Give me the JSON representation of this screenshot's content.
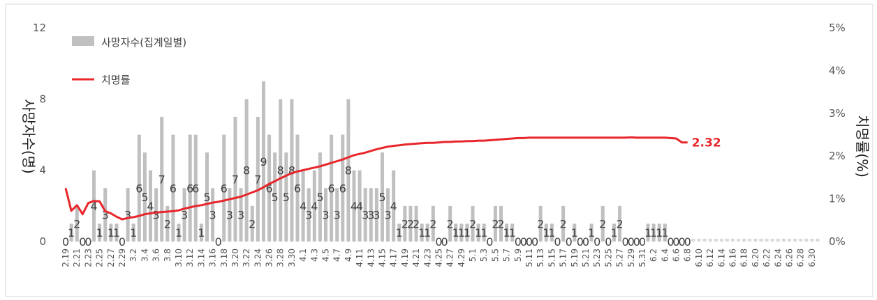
{
  "chart_data": {
    "type": "bar+line",
    "legend": {
      "placement": "top-left",
      "items": [
        "사망자수(집계일별)",
        "치명률"
      ]
    },
    "y_left": {
      "label": "사망자수(명)",
      "range": [
        0,
        12
      ],
      "ticks": [
        "0",
        "4",
        "8",
        "12"
      ]
    },
    "y_right": {
      "label": "치명률(%)",
      "range": [
        0,
        5
      ],
      "ticks": [
        "0%",
        "1%",
        "2%",
        "3%",
        "4%",
        "5%"
      ]
    },
    "x_ticks": [
      "2.19",
      "2.21",
      "2.23",
      "2.25",
      "2.27",
      "2.29",
      "3.2",
      "3.4",
      "3.6",
      "3.8",
      "3.10",
      "3.12",
      "3.14",
      "3.16",
      "3.18",
      "3.20",
      "3.22",
      "3.24",
      "3.26",
      "3.28",
      "3.30",
      "4.1",
      "4.3",
      "4.5",
      "4.7",
      "4.9",
      "4.11",
      "4.13",
      "4.15",
      "4.17",
      "4.19",
      "4.21",
      "4.23",
      "4.25",
      "4.27",
      "4.29",
      "5.1",
      "5.3",
      "5.5",
      "5.7",
      "5.9",
      "5.11",
      "5.13",
      "5.15",
      "5.17",
      "5.19",
      "5.21",
      "5.23",
      "5.25",
      "5.27",
      "5.29",
      "5.31",
      "6.2",
      "6.4",
      "6.6",
      "6.8",
      "6.10",
      "6.12",
      "6.14",
      "6.16",
      "6.18",
      "6.20",
      "6.22",
      "6.24",
      "6.26",
      "6.28",
      "6.30"
    ],
    "series": [
      {
        "name": "사망자수(집계일별)",
        "kind": "bar",
        "color": "#c0c0c0",
        "values": [
          0,
          1,
          2,
          0,
          0,
          4,
          1,
          3,
          1,
          1,
          0,
          3,
          1,
          6,
          5,
          4,
          3,
          7,
          2,
          6,
          1,
          3,
          6,
          6,
          1,
          5,
          3,
          0,
          6,
          3,
          7,
          3,
          8,
          2,
          7,
          9,
          6,
          5,
          8,
          5,
          8,
          6,
          4,
          3,
          4,
          5,
          3,
          6,
          3,
          6,
          8,
          4,
          4,
          3,
          3,
          3,
          5,
          3,
          4,
          1,
          2,
          2,
          2,
          1,
          1,
          2,
          0,
          0,
          2,
          1,
          1,
          1,
          2,
          1,
          1,
          0,
          2,
          2,
          1,
          1,
          0,
          0,
          0,
          0,
          2,
          1,
          1,
          0,
          2,
          0,
          1,
          0,
          0,
          1,
          0,
          2,
          0,
          1,
          2,
          0,
          0,
          0,
          0,
          1,
          1,
          1,
          1,
          0,
          0,
          0,
          0
        ]
      },
      {
        "name": "치명률",
        "kind": "line",
        "color": "#e8262b",
        "end_label": "2.32",
        "values": [
          1.25,
          0.72,
          0.85,
          0.64,
          0.9,
          0.95,
          0.94,
          0.71,
          0.66,
          0.58,
          0.52,
          0.55,
          0.57,
          0.6,
          0.64,
          0.66,
          0.68,
          0.69,
          0.7,
          0.71,
          0.73,
          0.77,
          0.8,
          0.83,
          0.85,
          0.88,
          0.91,
          0.93,
          0.96,
          0.99,
          1.02,
          1.05,
          1.1,
          1.15,
          1.2,
          1.27,
          1.35,
          1.41,
          1.48,
          1.54,
          1.6,
          1.64,
          1.67,
          1.7,
          1.73,
          1.76,
          1.8,
          1.84,
          1.88,
          1.92,
          1.97,
          2.02,
          2.05,
          2.08,
          2.12,
          2.16,
          2.19,
          2.22,
          2.24,
          2.25,
          2.27,
          2.28,
          2.29,
          2.3,
          2.31,
          2.31,
          2.32,
          2.33,
          2.33,
          2.34,
          2.34,
          2.35,
          2.35,
          2.36,
          2.36,
          2.37,
          2.38,
          2.39,
          2.4,
          2.41,
          2.42,
          2.42,
          2.43,
          2.43,
          2.43,
          2.43,
          2.43,
          2.43,
          2.43,
          2.43,
          2.43,
          2.43,
          2.43,
          2.43,
          2.43,
          2.43,
          2.43,
          2.43,
          2.43,
          2.43,
          2.44,
          2.43,
          2.43,
          2.43,
          2.43,
          2.43,
          2.43,
          2.42,
          2.41,
          2.32,
          2.32
        ]
      }
    ]
  }
}
